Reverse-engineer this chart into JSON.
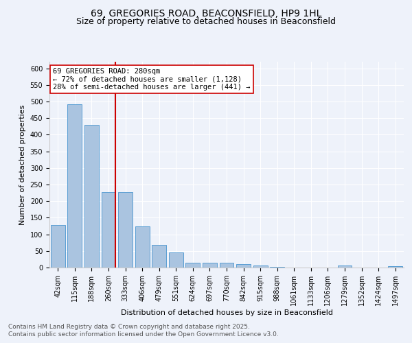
{
  "title_line1": "69, GREGORIES ROAD, BEACONSFIELD, HP9 1HL",
  "title_line2": "Size of property relative to detached houses in Beaconsfield",
  "xlabel": "Distribution of detached houses by size in Beaconsfield",
  "ylabel": "Number of detached properties",
  "bar_labels": [
    "42sqm",
    "115sqm",
    "188sqm",
    "260sqm",
    "333sqm",
    "406sqm",
    "479sqm",
    "551sqm",
    "624sqm",
    "697sqm",
    "770sqm",
    "842sqm",
    "915sqm",
    "988sqm",
    "1061sqm",
    "1133sqm",
    "1206sqm",
    "1279sqm",
    "1352sqm",
    "1424sqm",
    "1497sqm"
  ],
  "bar_values": [
    128,
    492,
    430,
    228,
    228,
    125,
    68,
    46,
    14,
    15,
    15,
    11,
    6,
    2,
    1,
    1,
    1,
    6,
    0,
    0,
    5
  ],
  "bar_color": "#aac4e0",
  "bar_edge_color": "#5a9fd4",
  "vline_index": 3,
  "vline_color": "#cc0000",
  "annotation_line1": "69 GREGORIES ROAD: 280sqm",
  "annotation_line2": "← 72% of detached houses are smaller (1,128)",
  "annotation_line3": "28% of semi-detached houses are larger (441) →",
  "ylim": [
    0,
    620
  ],
  "yticks": [
    0,
    50,
    100,
    150,
    200,
    250,
    300,
    350,
    400,
    450,
    500,
    550,
    600
  ],
  "background_color": "#eef2fa",
  "grid_color": "#ffffff",
  "footnote_line1": "Contains HM Land Registry data © Crown copyright and database right 2025.",
  "footnote_line2": "Contains public sector information licensed under the Open Government Licence v3.0.",
  "title_fontsize": 10,
  "subtitle_fontsize": 9,
  "axis_label_fontsize": 8,
  "tick_fontsize": 7,
  "annotation_fontsize": 7.5,
  "footnote_fontsize": 6.5
}
